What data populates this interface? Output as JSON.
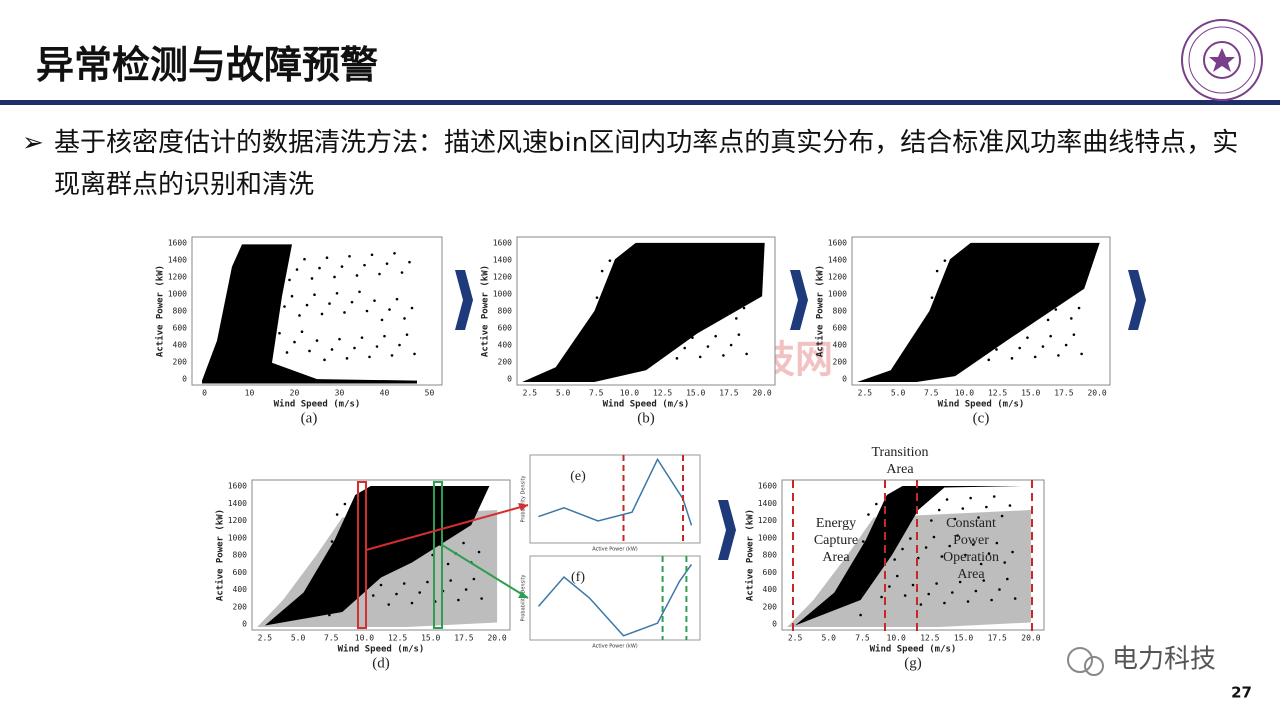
{
  "header": {
    "title": "异常检测与故障预警"
  },
  "bullet": {
    "marker": "➢",
    "text": "基于核密度估计的数据清洗方法：描述风速bin区间内功率点的真实分布，结合标准风功率曲线特点，实现离群点的识别和清洗"
  },
  "figure": {
    "panels": [
      {
        "caption": "(a)",
        "x_label": "Wind Speed (m/s)",
        "y_label": "Active Power (kW)",
        "x_ticks": [
          "0",
          "10",
          "20",
          "30",
          "40",
          "50"
        ],
        "y_ticks": [
          "0",
          "200",
          "400",
          "600",
          "800",
          "1000",
          "1200",
          "1400",
          "1600"
        ]
      },
      {
        "caption": "(b)",
        "x_label": "Wind Speed (m/s)",
        "y_label": "Active Power (kW)",
        "x_ticks": [
          "2.5",
          "5.0",
          "7.5",
          "10.0",
          "12.5",
          "15.0",
          "17.5",
          "20.0"
        ],
        "y_ticks": [
          "0",
          "200",
          "400",
          "600",
          "800",
          "1000",
          "1200",
          "1400",
          "1600"
        ]
      },
      {
        "caption": "(c)",
        "x_label": "Wind Speed (m/s)",
        "y_label": "Active Power (kW)",
        "x_ticks": [
          "2.5",
          "5.0",
          "7.5",
          "10.0",
          "12.5",
          "15.0",
          "17.5",
          "20.0"
        ],
        "y_ticks": [
          "0",
          "200",
          "400",
          "600",
          "800",
          "1000",
          "1200",
          "1400",
          "1600"
        ]
      },
      {
        "caption": "(d)",
        "x_label": "Wind Speed (m/s)",
        "y_label": "Active Power (kW)",
        "x_ticks": [
          "2.5",
          "5.0",
          "7.5",
          "10.0",
          "12.5",
          "15.0",
          "17.5",
          "20.0"
        ],
        "y_ticks": [
          "0",
          "200",
          "400",
          "600",
          "800",
          "1000",
          "1200",
          "1400",
          "1600"
        ]
      },
      {
        "caption": "(g)",
        "x_label": "Wind Speed (m/s)",
        "y_label": "Active Power (kW)",
        "x_ticks": [
          "2.5",
          "5.0",
          "7.5",
          "10.0",
          "12.5",
          "15.0",
          "17.5",
          "20.0"
        ],
        "y_ticks": [
          "0",
          "200",
          "400",
          "600",
          "800",
          "1000",
          "1200",
          "1400",
          "1600"
        ]
      }
    ],
    "insets": [
      {
        "caption": "(e)",
        "x_label": "Active Power (kW)",
        "y_label": "Probability Density"
      },
      {
        "caption": "(f)",
        "x_label": "Active Power (kW)",
        "y_label": "Probability Density"
      }
    ],
    "annotations": {
      "transition": "Transition Area",
      "energy_capture": "Energy Capture Area",
      "constant_power": "Constant Power Operation Area"
    }
  },
  "watermarks": {
    "site": "中国电力科技网",
    "account": "电力科技"
  },
  "page_number": "27"
}
